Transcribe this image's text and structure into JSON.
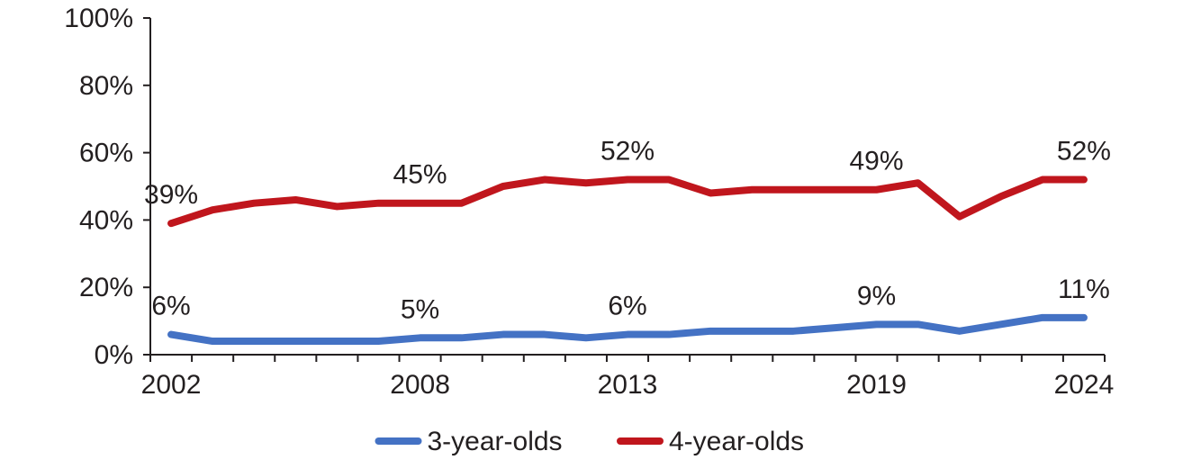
{
  "chart_data": {
    "type": "line",
    "title": "",
    "xlabel": "",
    "ylabel": "",
    "x": [
      2002,
      2003,
      2004,
      2005,
      2006,
      2007,
      2008,
      2009,
      2010,
      2011,
      2012,
      2013,
      2014,
      2015,
      2016,
      2017,
      2018,
      2019,
      2020,
      2021,
      2022,
      2023,
      2024
    ],
    "x_tick_labels": [
      "2002",
      "2008",
      "2013",
      "2019",
      "2024"
    ],
    "ylim": [
      0,
      100
    ],
    "y_tick_labels": [
      "0%",
      "20%",
      "40%",
      "60%",
      "80%",
      "100%"
    ],
    "grid": false,
    "legend_position": "bottom",
    "series": [
      {
        "name": "3-year-olds",
        "color": "#4472c4",
        "values": [
          6,
          4,
          4,
          4,
          4,
          4,
          5,
          5,
          6,
          6,
          5,
          6,
          6,
          7,
          7,
          7,
          8,
          9,
          9,
          7,
          9,
          11,
          11
        ],
        "labels": [
          {
            "year": 2002,
            "text": "6%"
          },
          {
            "year": 2008,
            "text": "5%"
          },
          {
            "year": 2013,
            "text": "6%"
          },
          {
            "year": 2019,
            "text": "9%"
          },
          {
            "year": 2024,
            "text": "11%"
          }
        ]
      },
      {
        "name": "4-year-olds",
        "color": "#c0161d",
        "values": [
          39,
          43,
          45,
          46,
          44,
          45,
          45,
          45,
          50,
          52,
          51,
          52,
          52,
          48,
          49,
          49,
          49,
          49,
          51,
          41,
          47,
          52,
          52
        ],
        "labels": [
          {
            "year": 2002,
            "text": "39%"
          },
          {
            "year": 2008,
            "text": "45%"
          },
          {
            "year": 2013,
            "text": "52%"
          },
          {
            "year": 2019,
            "text": "49%"
          },
          {
            "year": 2024,
            "text": "52%"
          }
        ]
      }
    ]
  }
}
